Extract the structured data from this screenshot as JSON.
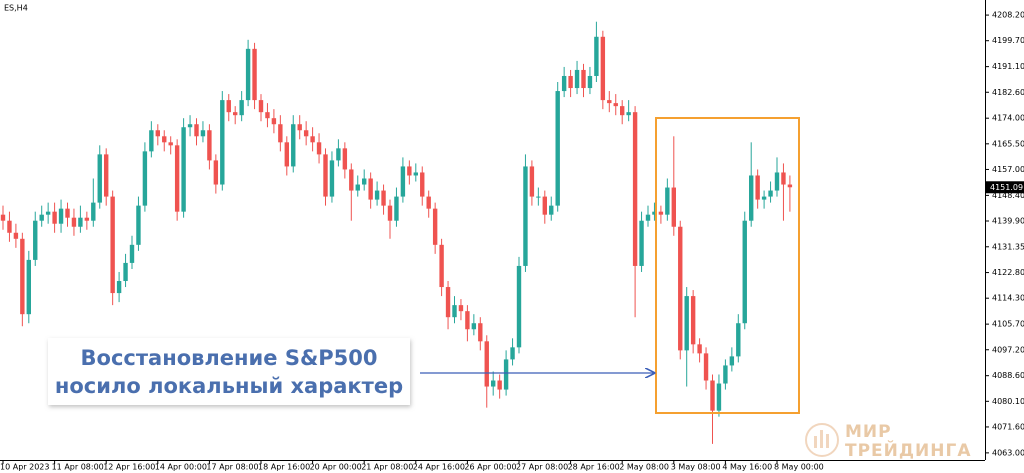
{
  "chart_data": {
    "type": "candlestick",
    "symbol": "ES,H4",
    "up_color": "#26a69a",
    "down_color": "#ef5350",
    "annotation": [
      "Восстановление S&P500",
      "носило локальный характер"
    ],
    "watermark": [
      "МИР",
      "ТРЕЙДИНГА"
    ],
    "ylim": [
      4061.3,
      4213.2
    ],
    "yticks": [
      {
        "value": 4208.2,
        "label": "4208.20"
      },
      {
        "value": 4199.7,
        "label": "4199.70"
      },
      {
        "value": 4191.1,
        "label": "4191.10"
      },
      {
        "value": 4182.6,
        "label": "4182.60"
      },
      {
        "value": 4174,
        "label": "4174.00"
      },
      {
        "value": 4165.5,
        "label": "4165.50"
      },
      {
        "value": 4157,
        "label": "4157.00"
      },
      {
        "value": 4148.4,
        "label": "4148.40"
      },
      {
        "value": 4139.9,
        "label": "4139.90"
      },
      4131.35,
      {
        "value": 4122.8,
        "label": "4122.80"
      },
      {
        "value": 4114.3,
        "label": "4114.30"
      },
      {
        "value": 4105.7,
        "label": "4105.70"
      },
      {
        "value": 4097.2,
        "label": "4097.20"
      },
      {
        "value": 4088.6,
        "label": "4088.60"
      },
      {
        "value": 4080.1,
        "label": "4080.10"
      },
      {
        "value": 4071.6,
        "label": "4071.60"
      },
      {
        "value": 4063,
        "label": "4063.00"
      }
    ],
    "categories": [
      "10 Apr 2023",
      null,
      null,
      null,
      null,
      null,
      null,
      null,
      "11 Apr 08:00",
      null,
      null,
      null,
      null,
      null,
      null,
      null,
      "12 Apr 16:00",
      null,
      null,
      null,
      null,
      null,
      null,
      null,
      "14 Apr 00:00",
      null,
      null,
      null,
      null,
      null,
      null,
      null,
      "17 Apr 08:00",
      null,
      null,
      null,
      null,
      null,
      null,
      null,
      "18 Apr 16:00",
      null,
      null,
      null,
      null,
      null,
      null,
      null,
      "20 Apr 00:00",
      null,
      null,
      null,
      null,
      null,
      null,
      null,
      "21 Apr 08:00",
      null,
      null,
      null,
      null,
      null,
      null,
      null,
      "24 Apr 16:00",
      null,
      null,
      null,
      null,
      null,
      null,
      null,
      "26 Apr 00:00",
      null,
      null,
      null,
      null,
      null,
      null,
      null,
      "27 Apr 08:00",
      null,
      null,
      null,
      null,
      null,
      null,
      null,
      "28 Apr 16:00",
      null,
      null,
      null,
      null,
      null,
      null,
      null,
      "2 May 08:00",
      null,
      null,
      null,
      null,
      null,
      null,
      null,
      "3 May 08:00",
      null,
      null,
      null,
      null,
      null,
      null,
      null,
      "4 May 16:00",
      null,
      null,
      null,
      null,
      null,
      null,
      null,
      "8 May 00:00",
      null,
      null
    ],
    "candles": [
      [
        4142,
        4145,
        4137,
        4140
      ],
      [
        4140,
        4143,
        4133,
        4136
      ],
      [
        4136,
        4139,
        4131,
        4134
      ],
      [
        4134,
        4136,
        4105,
        4109
      ],
      [
        4109,
        4130,
        4106,
        4127
      ],
      [
        4127,
        4143,
        4125,
        4140
      ],
      [
        4140,
        4145,
        4138,
        4142
      ],
      [
        4142,
        4146,
        4139,
        4143
      ],
      [
        4143,
        4146,
        4136,
        4139
      ],
      [
        4139,
        4147,
        4136,
        4144
      ],
      [
        4144,
        4146,
        4138,
        4141
      ],
      [
        4141,
        4144,
        4135,
        4138
      ],
      [
        4138,
        4145,
        4136,
        4141
      ],
      [
        4141,
        4143,
        4137,
        4140
      ],
      [
        4140,
        4154,
        4138,
        4146
      ],
      [
        4146,
        4165,
        4144,
        4162
      ],
      [
        4162,
        4164,
        4145,
        4148
      ],
      [
        4148,
        4150,
        4112,
        4116
      ],
      [
        4116,
        4123,
        4113,
        4120
      ],
      [
        4120,
        4129,
        4118,
        4126
      ],
      [
        4126,
        4135,
        4124,
        4132
      ],
      [
        4132,
        4148,
        4130,
        4145
      ],
      [
        4145,
        4166,
        4143,
        4163
      ],
      [
        4163,
        4173,
        4161,
        4170
      ],
      [
        4170,
        4172,
        4165,
        4168
      ],
      [
        4168,
        4170,
        4163,
        4166
      ],
      [
        4166,
        4168,
        4162,
        4165
      ],
      [
        4165,
        4167,
        4140,
        4143
      ],
      [
        4143,
        4174,
        4141,
        4171
      ],
      [
        4171,
        4175,
        4168,
        4172
      ],
      [
        4172,
        4174,
        4165,
        4168
      ],
      [
        4168,
        4173,
        4166,
        4170
      ],
      [
        4170,
        4172,
        4157,
        4160
      ],
      [
        4160,
        4162,
        4149,
        4152
      ],
      [
        4152,
        4183,
        4150,
        4180
      ],
      [
        4180,
        4182,
        4173,
        4176
      ],
      [
        4176,
        4178,
        4172,
        4175
      ],
      [
        4175,
        4183,
        4173,
        4180
      ],
      [
        4180,
        4200,
        4178,
        4197
      ],
      [
        4197,
        4199,
        4177,
        4180
      ],
      [
        4180,
        4182,
        4173,
        4176
      ],
      [
        4176,
        4179,
        4171,
        4174
      ],
      [
        4174,
        4177,
        4169,
        4172
      ],
      [
        4172,
        4175,
        4163,
        4166
      ],
      [
        4166,
        4168,
        4155,
        4158
      ],
      [
        4158,
        4175,
        4156,
        4172
      ],
      [
        4172,
        4175,
        4167,
        4170
      ],
      [
        4170,
        4173,
        4165,
        4168
      ],
      [
        4168,
        4171,
        4163,
        4166
      ],
      [
        4166,
        4169,
        4159,
        4162
      ],
      [
        4162,
        4164,
        4145,
        4148
      ],
      [
        4148,
        4163,
        4146,
        4160
      ],
      [
        4160,
        4167,
        4158,
        4164
      ],
      [
        4164,
        4166,
        4154,
        4157
      ],
      [
        4157,
        4159,
        4140,
        4150
      ],
      [
        4150,
        4155,
        4148,
        4152
      ],
      [
        4152,
        4157,
        4150,
        4154
      ],
      [
        4154,
        4156,
        4144,
        4147
      ],
      [
        4147,
        4153,
        4145,
        4150
      ],
      [
        4150,
        4152,
        4142,
        4145
      ],
      [
        4145,
        4147,
        4134,
        4140
      ],
      [
        4140,
        4151,
        4138,
        4148
      ],
      [
        4148,
        4161,
        4146,
        4158
      ],
      [
        4158,
        4160,
        4152,
        4155
      ],
      [
        4155,
        4159,
        4153,
        4156
      ],
      [
        4156,
        4158,
        4145,
        4148
      ],
      [
        4148,
        4150,
        4141,
        4144
      ],
      [
        4144,
        4146,
        4129,
        4132
      ],
      [
        4132,
        4134,
        4115,
        4118
      ],
      [
        4118,
        4120,
        4104,
        4108
      ],
      [
        4108,
        4115,
        4106,
        4112
      ],
      [
        4112,
        4114,
        4107,
        4110
      ],
      [
        4110,
        4112,
        4100,
        4104
      ],
      [
        4104,
        4109,
        4102,
        4106
      ],
      [
        4106,
        4108,
        4097,
        4100
      ],
      [
        4100,
        4102,
        4078,
        4085
      ],
      [
        4085,
        4090,
        4082,
        4087
      ],
      [
        4087,
        4089,
        4081,
        4084
      ],
      [
        4084,
        4097,
        4082,
        4094
      ],
      [
        4094,
        4101,
        4092,
        4098
      ],
      [
        4098,
        4128,
        4096,
        4125
      ],
      [
        4125,
        4162,
        4123,
        4158
      ],
      [
        4158,
        4160,
        4145,
        4148
      ],
      [
        4148,
        4151,
        4145,
        4148
      ],
      [
        4148,
        4150,
        4139,
        4142
      ],
      [
        4142,
        4148,
        4140,
        4145
      ],
      [
        4145,
        4186,
        4143,
        4183
      ],
      [
        4183,
        4191,
        4181,
        4188
      ],
      [
        4188,
        4190,
        4181,
        4184
      ],
      [
        4184,
        4193,
        4182,
        4190
      ],
      [
        4190,
        4192,
        4181,
        4184
      ],
      [
        4184,
        4191,
        4182,
        4188
      ],
      [
        4188,
        4206,
        4186,
        4201
      ],
      [
        4201,
        4203,
        4177,
        4180
      ],
      [
        4180,
        4183,
        4176,
        4179
      ],
      [
        4179,
        4182,
        4175,
        4178
      ],
      [
        4178,
        4180,
        4172,
        4175
      ],
      [
        4175,
        4180,
        4173,
        4176
      ],
      [
        4176,
        4178,
        4108,
        4125
      ],
      [
        4125,
        4143,
        4123,
        4140
      ],
      [
        4140,
        4145,
        4138,
        4142
      ],
      [
        4142,
        4146,
        4140,
        4143
      ],
      [
        4143,
        4145,
        4139,
        4142
      ],
      [
        4142,
        4154,
        4140,
        4151
      ],
      [
        4151,
        4168,
        4135,
        4138
      ],
      [
        4138,
        4140,
        4094,
        4097
      ],
      [
        4097,
        4118,
        4085,
        4115
      ],
      [
        4115,
        4117,
        4096,
        4099
      ],
      [
        4099,
        4101,
        4093,
        4096
      ],
      [
        4096,
        4098,
        4084,
        4087
      ],
      [
        4087,
        4089,
        4066,
        4077
      ],
      [
        4077,
        4089,
        4075,
        4086
      ],
      [
        4086,
        4094,
        4084,
        4092
      ],
      [
        4092,
        4098,
        4090,
        4095
      ],
      [
        4095,
        4109,
        4093,
        4106
      ],
      [
        4106,
        4143,
        4104,
        4140
      ],
      [
        4140,
        4166,
        4138,
        4155
      ],
      [
        4155,
        4157,
        4144,
        4147
      ],
      [
        4147,
        4150,
        4144,
        4148
      ],
      [
        4148,
        4153,
        4146,
        4150
      ],
      [
        4150,
        4161,
        4148,
        4156
      ],
      [
        4156,
        4159,
        4140,
        4152
      ],
      [
        4152,
        4155,
        4143,
        4151.09
      ]
    ]
  }
}
